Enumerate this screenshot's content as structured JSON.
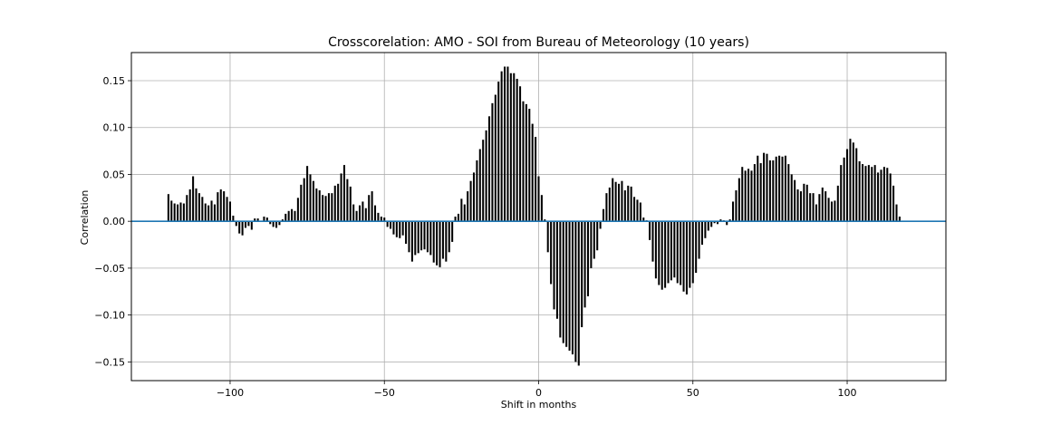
{
  "chart_data": {
    "type": "bar",
    "title": "Crosscorelation: AMO - SOI from Bureau of Meteorology (10 years)",
    "xlabel": "Shift in months",
    "ylabel": "Correlation",
    "xlim": [
      -132,
      132
    ],
    "ylim": [
      -0.17,
      0.18
    ],
    "xticks": [
      -100,
      -50,
      0,
      50,
      100
    ],
    "xtick_labels": [
      "−100",
      "−50",
      "0",
      "50",
      "100"
    ],
    "yticks": [
      0.15,
      0.1,
      0.05,
      0.0,
      -0.05,
      -0.1,
      -0.15
    ],
    "ytick_labels": [
      "0.15",
      "0.10",
      "0.05",
      "0.00",
      "−0.05",
      "−0.10",
      "−0.15"
    ],
    "grid": true,
    "bar_color": "#000000",
    "zero_line_color": "#1f77b4",
    "x_start": -120,
    "x_step": 1,
    "values": [
      0.029,
      0.022,
      0.019,
      0.018,
      0.02,
      0.019,
      0.028,
      0.034,
      0.048,
      0.035,
      0.03,
      0.026,
      0.019,
      0.017,
      0.022,
      0.018,
      0.031,
      0.034,
      0.032,
      0.026,
      0.021,
      0.006,
      -0.005,
      -0.013,
      -0.015,
      -0.007,
      -0.005,
      -0.009,
      0.003,
      0.003,
      0.0,
      0.005,
      0.004,
      -0.003,
      -0.006,
      -0.007,
      -0.004,
      0.002,
      0.008,
      0.011,
      0.013,
      0.011,
      0.025,
      0.039,
      0.046,
      0.059,
      0.05,
      0.043,
      0.035,
      0.033,
      0.028,
      0.027,
      0.03,
      0.03,
      0.038,
      0.04,
      0.051,
      0.06,
      0.045,
      0.037,
      0.018,
      0.011,
      0.017,
      0.021,
      0.014,
      0.028,
      0.032,
      0.017,
      0.009,
      0.005,
      0.004,
      -0.006,
      -0.008,
      -0.014,
      -0.017,
      -0.018,
      -0.015,
      -0.024,
      -0.033,
      -0.043,
      -0.036,
      -0.034,
      -0.031,
      -0.03,
      -0.033,
      -0.036,
      -0.044,
      -0.047,
      -0.049,
      -0.04,
      -0.043,
      -0.033,
      -0.022,
      0.005,
      0.008,
      0.024,
      0.018,
      0.032,
      0.043,
      0.052,
      0.065,
      0.077,
      0.087,
      0.097,
      0.112,
      0.126,
      0.135,
      0.149,
      0.16,
      0.165,
      0.165,
      0.158,
      0.158,
      0.152,
      0.144,
      0.128,
      0.125,
      0.12,
      0.104,
      0.09,
      0.048,
      0.028,
      0.002,
      -0.033,
      -0.067,
      -0.094,
      -0.104,
      -0.124,
      -0.13,
      -0.134,
      -0.138,
      -0.142,
      -0.15,
      -0.154,
      -0.113,
      -0.092,
      -0.08,
      -0.05,
      -0.04,
      -0.031,
      -0.008,
      0.013,
      0.03,
      0.036,
      0.046,
      0.042,
      0.04,
      0.043,
      0.033,
      0.038,
      0.037,
      0.026,
      0.023,
      0.02,
      0.004,
      0.001,
      -0.02,
      -0.043,
      -0.061,
      -0.068,
      -0.073,
      -0.071,
      -0.066,
      -0.063,
      -0.06,
      -0.066,
      -0.068,
      -0.075,
      -0.078,
      -0.071,
      -0.066,
      -0.055,
      -0.04,
      -0.025,
      -0.018,
      -0.01,
      -0.006,
      -0.002,
      -0.003,
      0.002,
      0.001,
      -0.004,
      0.002,
      0.021,
      0.033,
      0.046,
      0.058,
      0.054,
      0.056,
      0.054,
      0.061,
      0.07,
      0.062,
      0.073,
      0.072,
      0.065,
      0.065,
      0.069,
      0.07,
      0.069,
      0.07,
      0.061,
      0.05,
      0.044,
      0.034,
      0.032,
      0.04,
      0.039,
      0.03,
      0.03,
      0.018,
      0.029,
      0.036,
      0.032,
      0.025,
      0.021,
      0.022,
      0.038,
      0.06,
      0.068,
      0.077,
      0.088,
      0.084,
      0.078,
      0.064,
      0.061,
      0.059,
      0.06,
      0.058,
      0.06,
      0.052,
      0.055,
      0.058,
      0.057,
      0.051,
      0.038,
      0.018,
      0.005
    ]
  }
}
